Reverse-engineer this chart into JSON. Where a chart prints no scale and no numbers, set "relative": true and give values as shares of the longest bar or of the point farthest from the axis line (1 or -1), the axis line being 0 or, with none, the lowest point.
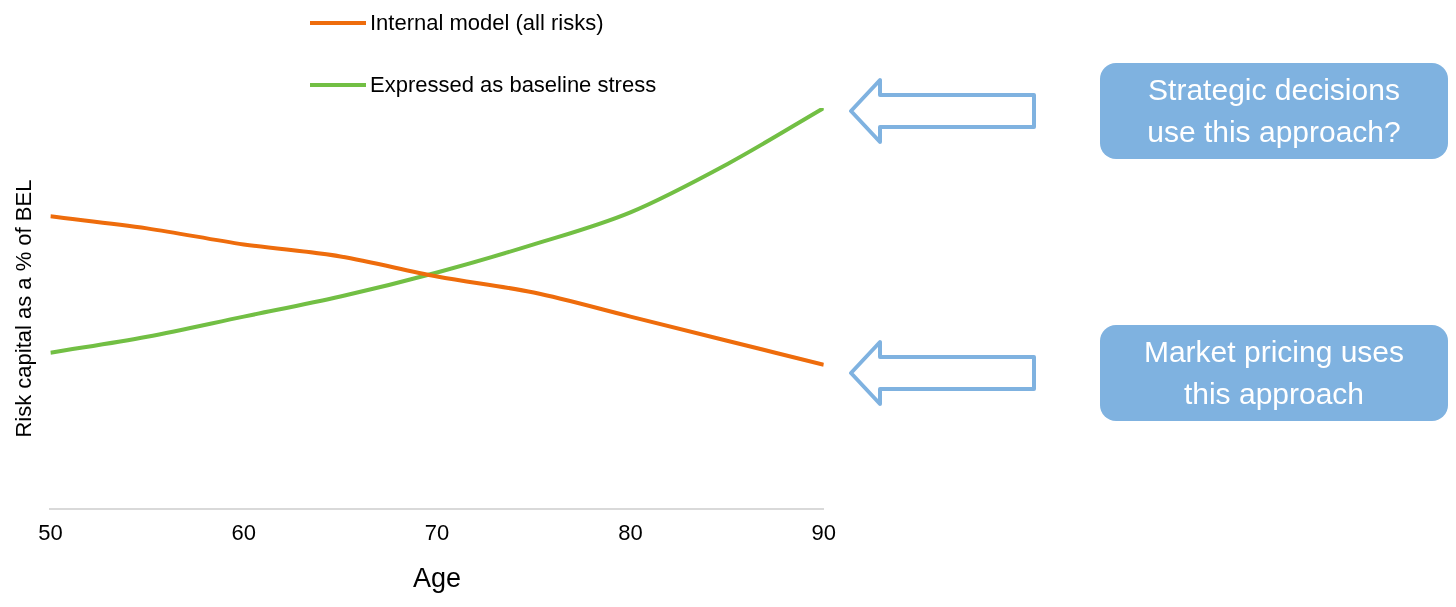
{
  "chart_data": {
    "type": "line",
    "relative": true,
    "xlabel": "Age",
    "ylabel": "Risk capital as a % of BEL",
    "x": [
      50,
      55,
      60,
      65,
      70,
      75,
      80,
      85,
      90
    ],
    "xlim": [
      50,
      90
    ],
    "xticks": [
      50,
      60,
      70,
      80,
      90
    ],
    "grid": false,
    "legend": "top",
    "series": [
      {
        "name": "Internal model (all risks)",
        "color": "#ee6c0c",
        "values": [
          0.73,
          0.7,
          0.66,
          0.63,
          0.58,
          0.54,
          0.48,
          0.42,
          0.36
        ]
      },
      {
        "name": "Expressed as baseline stress",
        "color": "#72bf44",
        "values": [
          0.39,
          0.43,
          0.48,
          0.53,
          0.59,
          0.66,
          0.74,
          0.86,
          1
        ]
      }
    ],
    "annotations": [
      "Strategic decisions use this approach?",
      "Market pricing uses this approach"
    ]
  }
}
